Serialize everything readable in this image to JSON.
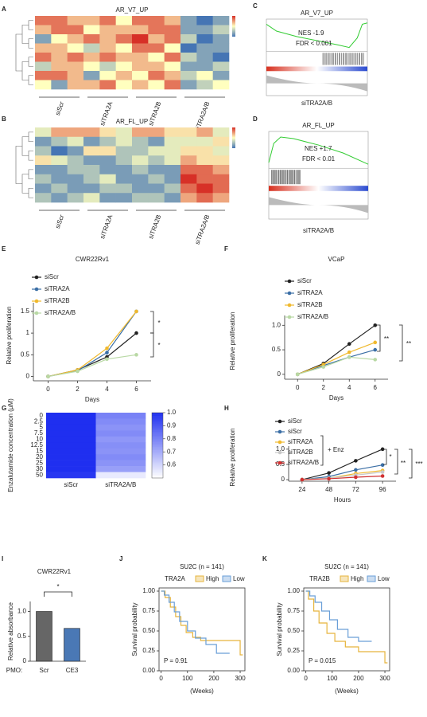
{
  "chart_data": [
    {
      "label": "A",
      "type": "clustermap",
      "title": "AR_V7_UP",
      "categories": [
        "siScr",
        "siTRA2A",
        "siTRA2B",
        "siTRA2A/B"
      ],
      "values": [
        [
          1,
          1,
          0.5,
          0.5,
          1,
          0,
          1,
          1,
          0.5,
          -1,
          -1.5,
          -1
        ],
        [
          0.5,
          1,
          1,
          0,
          0.5,
          0.5,
          0.5,
          1,
          1,
          -1,
          -1,
          -0.5
        ],
        [
          -1,
          0,
          0.5,
          1,
          0.5,
          1,
          1.5,
          0.5,
          1,
          -0.5,
          -1.5,
          -1
        ],
        [
          0.5,
          0.5,
          0,
          -0.5,
          0.5,
          0,
          1,
          1,
          0,
          -1.5,
          -1,
          -1
        ],
        [
          1,
          0.5,
          1,
          0.5,
          1,
          0.5,
          0.5,
          0,
          1,
          -0.5,
          -1,
          -1.5
        ],
        [
          -0.5,
          0.5,
          0.5,
          0,
          -0.5,
          0,
          0.5,
          0.5,
          0,
          -1,
          -1,
          -0.5
        ],
        [
          1,
          1,
          0.5,
          -1,
          0,
          0.5,
          0,
          1,
          0.5,
          -0.5,
          0,
          -1
        ],
        [
          0,
          -1,
          0.5,
          0.5,
          1,
          0,
          0.5,
          0,
          1,
          -1,
          -0.5,
          0
        ]
      ],
      "colors": [
        "#4575b4",
        "#ffffbf",
        "#d73027"
      ]
    },
    {
      "label": "C",
      "type": "gsea",
      "title": "AR_V7_UP",
      "annotations": [
        "NES -1.9",
        "FDR < 0.001"
      ],
      "xlabel": "siTRA2A/B"
    },
    {
      "label": "B",
      "type": "clustermap",
      "title": "AR_FL_UP",
      "categories": [
        "siScr",
        "siTRA2A",
        "siTRA2B",
        "siTRA2A/B"
      ],
      "values": [
        [
          0,
          1,
          1,
          1,
          0.5,
          0,
          1,
          1,
          0.5,
          0.5,
          1,
          0
        ],
        [
          -1,
          -0.5,
          0,
          -1,
          -0.5,
          0,
          -0.5,
          -1,
          0,
          0,
          0,
          0.5
        ],
        [
          -0.5,
          -1.5,
          -1,
          0.5,
          0.5,
          -0.5,
          -0.5,
          0,
          0,
          0.5,
          0.5,
          0
        ],
        [
          0.5,
          0,
          -0.5,
          -1,
          -1,
          -0.5,
          0,
          -0.5,
          0,
          1,
          0.5,
          0.5
        ],
        [
          -1,
          -1,
          -0.5,
          -0.5,
          -1,
          -1,
          -0.5,
          -1,
          -1,
          1.5,
          1.5,
          1
        ],
        [
          -0.5,
          -1,
          -1,
          -0.5,
          0,
          -1,
          -1,
          -0.5,
          -1,
          2,
          1.5,
          1.5
        ],
        [
          -1,
          -0.5,
          -1,
          -1,
          -0.5,
          -0.5,
          -1,
          -1,
          -0.5,
          1.5,
          2,
          1.5
        ],
        [
          -0.5,
          -1,
          -0.5,
          0,
          -1,
          -1,
          -0.5,
          -0.5,
          -1,
          1,
          1.5,
          1
        ]
      ],
      "colors": [
        "#4575b4",
        "#ffffbf",
        "#d73027"
      ]
    },
    {
      "label": "D",
      "type": "gsea",
      "title": "AR_FL_UP",
      "annotations": [
        "NES +1.7",
        "FDR < 0.01"
      ],
      "xlabel": "siTRA2A/B"
    },
    {
      "label": "E",
      "type": "line",
      "title": "CWR22Rv1",
      "xlabel": "Days",
      "ylabel": "Relative proliferation",
      "x": [
        0,
        2,
        4,
        6
      ],
      "xlim": [
        -1,
        7
      ],
      "xticks": [
        0,
        2,
        4,
        6
      ],
      "ylim": [
        -0.1,
        1.7
      ],
      "yticks": [
        0,
        0.5,
        1,
        1.5
      ],
      "series": [
        {
          "name": "siScr",
          "color": "#222222",
          "values": [
            0,
            0.15,
            0.45,
            1.0
          ]
        },
        {
          "name": "siTRA2A",
          "color": "#3a6ea5",
          "values": [
            0,
            0.13,
            0.55,
            1.5
          ]
        },
        {
          "name": "siTRA2B",
          "color": "#f0b92d",
          "values": [
            0,
            0.15,
            0.65,
            1.5
          ]
        },
        {
          "name": "siTRA2A/B",
          "color": "#b9d9a5",
          "values": [
            0,
            0.12,
            0.4,
            0.5
          ]
        }
      ],
      "annotations": [
        "*",
        "*"
      ]
    },
    {
      "label": "F",
      "type": "line",
      "title": "VCaP",
      "xlabel": "Days",
      "ylabel": "Relative proliferation",
      "x": [
        0,
        2,
        4,
        6
      ],
      "xlim": [
        -1,
        7
      ],
      "xticks": [
        0,
        2,
        4,
        6
      ],
      "ylim": [
        -0.1,
        1.2
      ],
      "yticks": [
        0,
        0.5,
        {
          "value": 1,
          "label": "1.0"
        }
      ],
      "series": [
        {
          "name": "siScr",
          "color": "#222222",
          "values": [
            0,
            0.22,
            0.62,
            1.0
          ]
        },
        {
          "name": "siTRA2A",
          "color": "#3a6ea5",
          "values": [
            0,
            0.18,
            0.35,
            0.5
          ]
        },
        {
          "name": "siTRA2B",
          "color": "#f0b92d",
          "values": [
            0,
            0.2,
            0.45,
            0.65
          ]
        },
        {
          "name": "siTRA2A/B",
          "color": "#b9d9a5",
          "values": [
            0,
            0.15,
            0.35,
            0.3
          ]
        }
      ],
      "annotations": [
        "**",
        "**"
      ]
    },
    {
      "label": "G",
      "type": "heatmap",
      "ylabel": "Enzalutamide concentration (µM)",
      "categories": [
        "siScr",
        "siTRA2A/B"
      ],
      "rows": [
        0,
        2.5,
        5,
        7.5,
        10,
        12.5,
        15,
        20,
        25,
        30,
        50
      ],
      "values": [
        [
          1,
          0.8
        ],
        [
          1,
          0.78
        ],
        [
          1,
          0.76
        ],
        [
          1,
          0.78
        ],
        [
          1,
          0.75
        ],
        [
          1,
          0.77
        ],
        [
          1,
          0.76
        ],
        [
          1,
          0.78
        ],
        [
          1,
          0.76
        ],
        [
          1,
          0.73
        ],
        [
          0.98,
          0.55
        ]
      ],
      "zlim": [
        0.5,
        1
      ],
      "zticks": [
        0.6,
        0.7,
        0.8,
        0.9,
        {
          "value": 1,
          "label": "1.0"
        }
      ],
      "colors": [
        "#ffffff",
        "#1f2ff0"
      ]
    },
    {
      "label": "H",
      "type": "line",
      "xlabel": "Hours",
      "ylabel": "Relative proliferation",
      "x": [
        24,
        48,
        72,
        96
      ],
      "xlim": [
        12,
        108
      ],
      "xticks": [
        24,
        48,
        72,
        96
      ],
      "ylim": [
        -0.05,
        1.1
      ],
      "yticks": [
        0,
        0.5,
        {
          "value": 1,
          "label": "1.0"
        }
      ],
      "series": [
        {
          "name": "siScr",
          "color": "#222222",
          "values": [
            0,
            0.22,
            0.62,
            1.0
          ]
        },
        {
          "name": "siScr",
          "color": "#3a6ea5",
          "values": [
            0,
            0.1,
            0.32,
            0.48
          ]
        },
        {
          "name": "siTRA2A",
          "color": "#f0b92d",
          "values": [
            0,
            0.05,
            0.2,
            0.3
          ]
        },
        {
          "name": "siTRA2B",
          "color": "#c8c8c8",
          "values": [
            0,
            0.05,
            0.15,
            0.25
          ]
        },
        {
          "name": "siTRA2A/B",
          "color": "#d03030",
          "values": [
            0,
            0.03,
            0.08,
            0.12
          ]
        }
      ],
      "annotations": [
        "+ Enz",
        "*",
        "**",
        "***"
      ]
    },
    {
      "label": "I",
      "type": "bar",
      "title": "CWR22Rv1",
      "ylabel": "Relative absorbance",
      "xlabel": "PMO:",
      "categories": [
        "Scr",
        "CE3"
      ],
      "values": [
        1.0,
        0.66
      ],
      "colors": [
        "#666666",
        "#4a78b5"
      ],
      "ylim": [
        0,
        1.2
      ],
      "yticks": [
        0,
        0.5,
        {
          "value": 1,
          "label": "1.0"
        }
      ],
      "annotations": [
        "*"
      ]
    },
    {
      "label": "J",
      "type": "survival",
      "title": "SU2C (n = 141)",
      "legend_title": "TRA2A",
      "xlabel": "(Weeks)",
      "ylabel": "Survival probability",
      "xlim": [
        -8,
        318
      ],
      "xticks": [
        0,
        100,
        200,
        300
      ],
      "ylim": [
        0,
        1.04
      ],
      "yticks": [
        {
          "value": 0,
          "label": "0.00"
        },
        {
          "value": 0.25,
          "label": "0.25"
        },
        {
          "value": 0.5,
          "label": "0.50"
        },
        {
          "value": 0.75,
          "label": "0.75"
        },
        {
          "value": 1,
          "label": "1.00"
        }
      ],
      "series": [
        {
          "name": "High",
          "color": "#e6b43c",
          "x": [
            0,
            15,
            15,
            35,
            35,
            55,
            55,
            75,
            75,
            95,
            95,
            120,
            120,
            150,
            150,
            300,
            300,
            310
          ],
          "values": [
            1,
            1,
            0.92,
            0.92,
            0.8,
            0.8,
            0.68,
            0.68,
            0.57,
            0.57,
            0.48,
            0.48,
            0.42,
            0.42,
            0.38,
            0.38,
            0.2,
            0.2
          ]
        },
        {
          "name": "Low",
          "color": "#6a9fd8",
          "x": [
            0,
            12,
            12,
            30,
            30,
            50,
            50,
            70,
            70,
            100,
            100,
            130,
            130,
            170,
            170,
            210,
            210,
            260
          ],
          "values": [
            1,
            1,
            0.95,
            0.95,
            0.86,
            0.86,
            0.74,
            0.74,
            0.62,
            0.62,
            0.5,
            0.5,
            0.41,
            0.41,
            0.33,
            0.33,
            0.22,
            0.22
          ]
        }
      ],
      "annotations": [
        "P = 0.91"
      ]
    },
    {
      "label": "K",
      "type": "survival",
      "title": "SU2C (n = 141)",
      "legend_title": "TRA2B",
      "xlabel": "(Weeks)",
      "ylabel": "Survival probability",
      "xlim": [
        -8,
        318
      ],
      "xticks": [
        0,
        100,
        200,
        300
      ],
      "ylim": [
        0,
        1.04
      ],
      "yticks": [
        {
          "value": 0,
          "label": "0.00"
        },
        {
          "value": 0.25,
          "label": "0.25"
        },
        {
          "value": 0.5,
          "label": "0.50"
        },
        {
          "value": 0.75,
          "label": "0.75"
        },
        {
          "value": 1,
          "label": "1.00"
        }
      ],
      "series": [
        {
          "name": "High",
          "color": "#e6b43c",
          "x": [
            0,
            10,
            10,
            30,
            30,
            50,
            50,
            80,
            80,
            110,
            110,
            150,
            150,
            200,
            200,
            300,
            300,
            310
          ],
          "values": [
            1,
            1,
            0.9,
            0.9,
            0.75,
            0.75,
            0.6,
            0.6,
            0.47,
            0.47,
            0.37,
            0.37,
            0.3,
            0.3,
            0.24,
            0.24,
            0.1,
            0.1
          ]
        },
        {
          "name": "Low",
          "color": "#6a9fd8",
          "x": [
            0,
            15,
            15,
            35,
            35,
            60,
            60,
            90,
            90,
            120,
            120,
            160,
            160,
            200,
            200,
            250
          ],
          "values": [
            1,
            1,
            0.94,
            0.94,
            0.86,
            0.86,
            0.75,
            0.75,
            0.64,
            0.64,
            0.52,
            0.52,
            0.42,
            0.42,
            0.37,
            0.37
          ]
        }
      ],
      "annotations": [
        "P = 0.015"
      ]
    }
  ]
}
